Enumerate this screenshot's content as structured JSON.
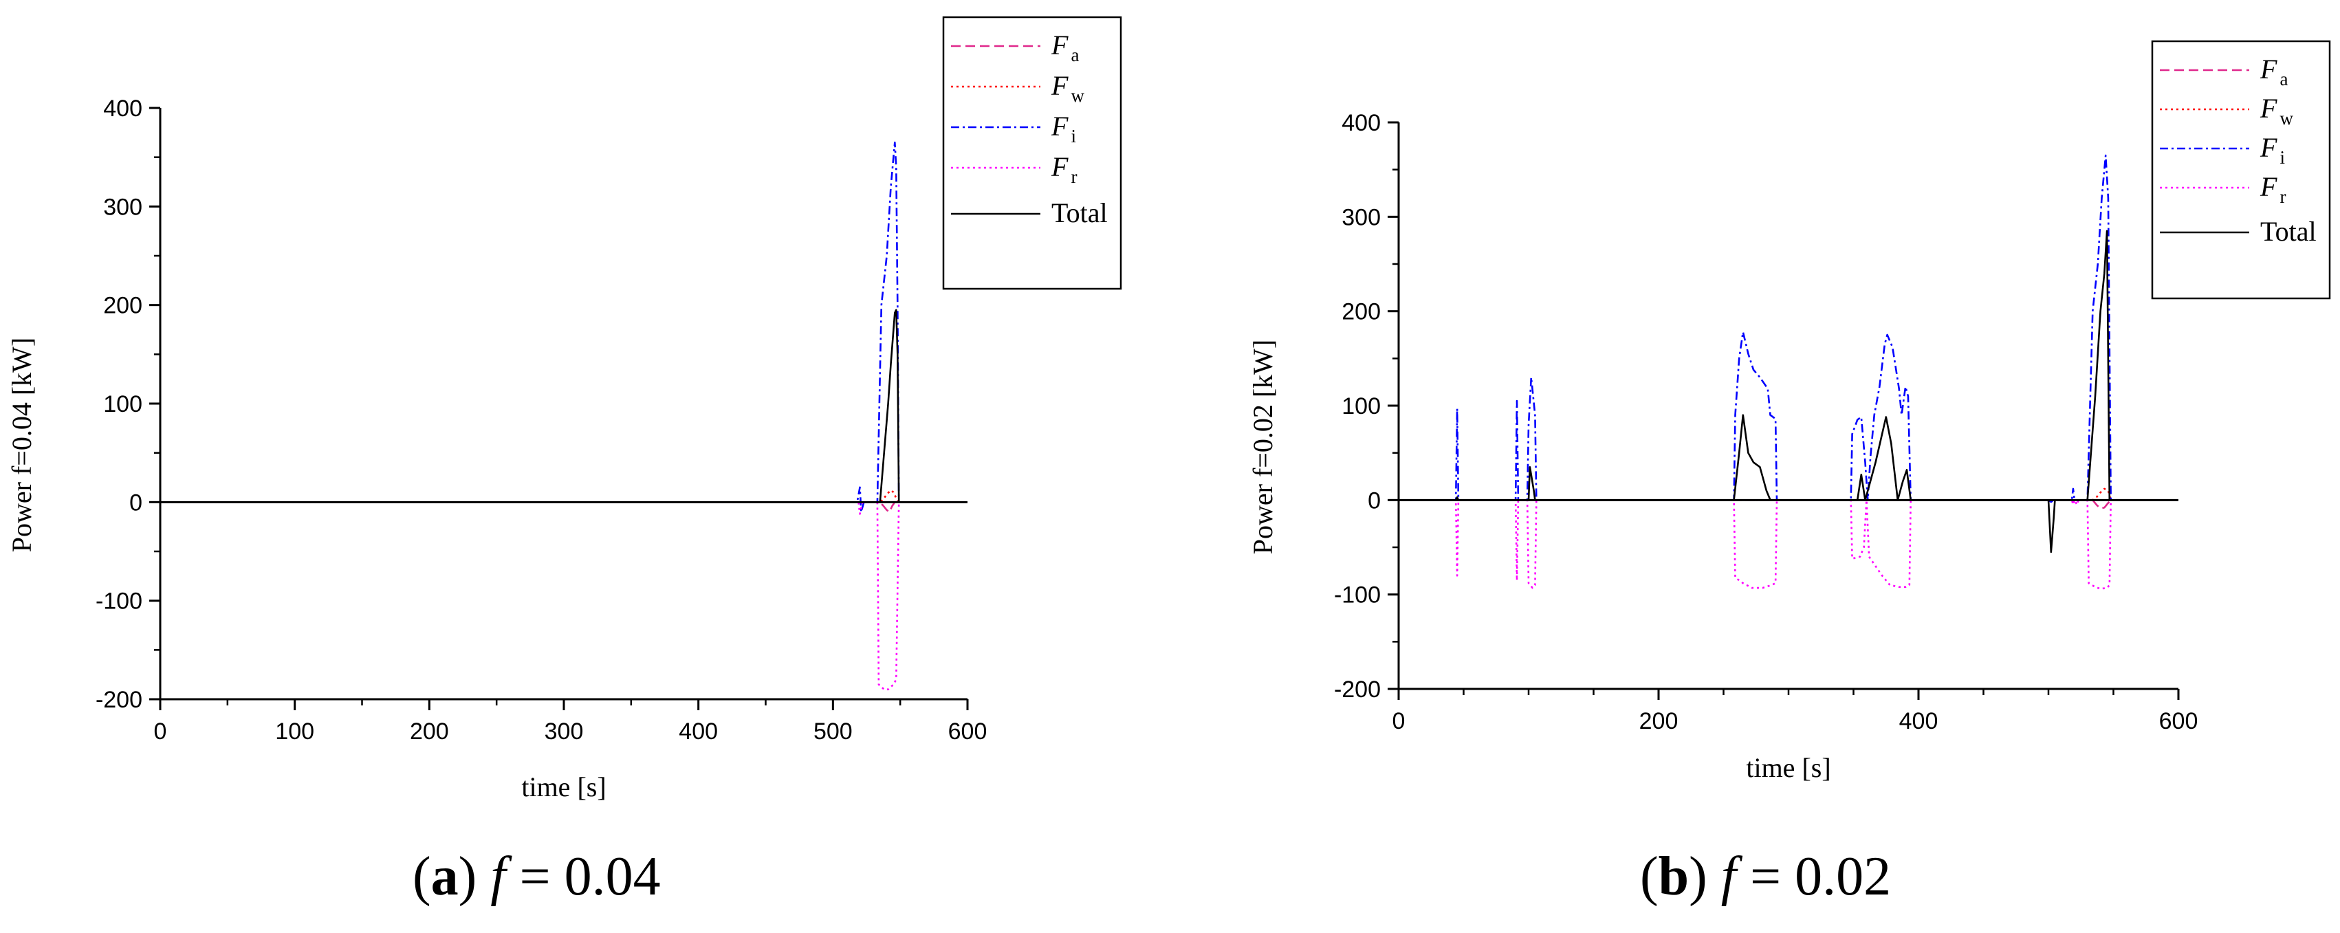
{
  "captions": [
    {
      "letter": "a",
      "var": "f",
      "eq": " = 0.04"
    },
    {
      "letter": "b",
      "var": "f",
      "eq": " = 0.02"
    }
  ],
  "chart_data": [
    {
      "type": "line",
      "panel": "a",
      "xlabel": "time [s]",
      "ylabel": "Power f=0.04 [kW]",
      "xlim": [
        0,
        600
      ],
      "ylim": [
        -200,
        400
      ],
      "xticks": [
        0,
        100,
        200,
        300,
        400,
        500,
        600
      ],
      "yticks": [
        -200,
        -100,
        0,
        100,
        200,
        300,
        400
      ],
      "grid": false,
      "legend_position": "top-right",
      "series": [
        {
          "name": "F",
          "sub": "a",
          "color": "#e0288c",
          "dash": "dashed",
          "points": [
            [
              0,
              0
            ],
            [
              534,
              0
            ],
            [
              537,
              -3
            ],
            [
              540,
              -8
            ],
            [
              542,
              -10
            ],
            [
              544,
              -4
            ],
            [
              546,
              0
            ],
            [
              600,
              0
            ]
          ]
        },
        {
          "name": "F",
          "sub": "w",
          "color": "#ff0000",
          "dash": "dotted",
          "points": [
            [
              0,
              0
            ],
            [
              534,
              0
            ],
            [
              537,
              2
            ],
            [
              540,
              8
            ],
            [
              543,
              12
            ],
            [
              545,
              10
            ],
            [
              547,
              4
            ],
            [
              549,
              0
            ],
            [
              600,
              0
            ]
          ]
        },
        {
          "name": "F",
          "sub": "i",
          "color": "#0000ff",
          "dash": "dashdot",
          "points": [
            [
              0,
              0
            ],
            [
              518,
              0
            ],
            [
              520,
              15
            ],
            [
              521,
              -10
            ],
            [
              523,
              0
            ],
            [
              533,
              0
            ],
            [
              536,
              200
            ],
            [
              540,
              250
            ],
            [
              543,
              320
            ],
            [
              546,
              365
            ],
            [
              547,
              340
            ],
            [
              548,
              200
            ],
            [
              549,
              0
            ],
            [
              600,
              0
            ]
          ]
        },
        {
          "name": "F",
          "sub": "r",
          "color": "#ff00ff",
          "dash": "dotted",
          "points": [
            [
              0,
              0
            ],
            [
              519,
              0
            ],
            [
              520,
              -12
            ],
            [
              522,
              0
            ],
            [
              533,
              0
            ],
            [
              534,
              -185
            ],
            [
              538,
              -190
            ],
            [
              541,
              -190
            ],
            [
              545,
              -185
            ],
            [
              547,
              -180
            ],
            [
              549,
              0
            ],
            [
              600,
              0
            ]
          ]
        },
        {
          "name": "Total",
          "sub": "",
          "color": "#000000",
          "dash": "solid",
          "points": [
            [
              0,
              0
            ],
            [
              535,
              0
            ],
            [
              538,
              50
            ],
            [
              541,
              100
            ],
            [
              543,
              140
            ],
            [
              546,
              192
            ],
            [
              547,
              195
            ],
            [
              548,
              150
            ],
            [
              549,
              0
            ],
            [
              600,
              0
            ]
          ]
        }
      ]
    },
    {
      "type": "line",
      "panel": "b",
      "xlabel": "time [s]",
      "ylabel": "Power f=0.02 [kW]",
      "xlim": [
        0,
        600
      ],
      "ylim": [
        -200,
        400
      ],
      "xticks": [
        0,
        200,
        400,
        600
      ],
      "yticks": [
        -200,
        -100,
        0,
        100,
        200,
        300,
        400
      ],
      "grid": false,
      "legend_position": "top-right",
      "series": [
        {
          "name": "F",
          "sub": "a",
          "color": "#e0288c",
          "dash": "dashed",
          "points": [
            [
              0,
              0
            ],
            [
              534,
              0
            ],
            [
              537,
              -5
            ],
            [
              540,
              -9
            ],
            [
              543,
              -8
            ],
            [
              546,
              -3
            ],
            [
              548,
              0
            ],
            [
              600,
              0
            ]
          ]
        },
        {
          "name": "F",
          "sub": "w",
          "color": "#ff0000",
          "dash": "dotted",
          "points": [
            [
              0,
              0
            ],
            [
              534,
              0
            ],
            [
              537,
              3
            ],
            [
              540,
              8
            ],
            [
              543,
              12
            ],
            [
              546,
              10
            ],
            [
              548,
              0
            ],
            [
              600,
              0
            ]
          ]
        },
        {
          "name": "F",
          "sub": "i",
          "color": "#0000ff",
          "dash": "dashdot",
          "points": [
            [
              0,
              0
            ],
            [
              44,
              0
            ],
            [
              45,
              97
            ],
            [
              46,
              0
            ],
            [
              90,
              0
            ],
            [
              91,
              105
            ],
            [
              92,
              0
            ],
            [
              99,
              0
            ],
            [
              100,
              80
            ],
            [
              102,
              130
            ],
            [
              105,
              90
            ],
            [
              106,
              0
            ],
            [
              258,
              0
            ],
            [
              259,
              90
            ],
            [
              262,
              150
            ],
            [
              265,
              178
            ],
            [
              269,
              155
            ],
            [
              273,
              138
            ],
            [
              278,
              130
            ],
            [
              284,
              118
            ],
            [
              286,
              90
            ],
            [
              290,
              86
            ],
            [
              291,
              0
            ],
            [
              348,
              0
            ],
            [
              349,
              70
            ],
            [
              353,
              85
            ],
            [
              356,
              88
            ],
            [
              359,
              40
            ],
            [
              361,
              0
            ],
            [
              363,
              45
            ],
            [
              366,
              90
            ],
            [
              370,
              120
            ],
            [
              374,
              165
            ],
            [
              376,
              175
            ],
            [
              380,
              162
            ],
            [
              385,
              118
            ],
            [
              387,
              90
            ],
            [
              390,
              120
            ],
            [
              392,
              110
            ],
            [
              394,
              0
            ],
            [
              500,
              0
            ],
            [
              502,
              -2
            ],
            [
              504,
              0
            ],
            [
              518,
              0
            ],
            [
              519,
              12
            ],
            [
              520,
              0
            ],
            [
              530,
              0
            ],
            [
              534,
              200
            ],
            [
              538,
              250
            ],
            [
              541,
              320
            ],
            [
              544,
              365
            ],
            [
              546,
              320
            ],
            [
              548,
              0
            ],
            [
              600,
              0
            ]
          ]
        },
        {
          "name": "F",
          "sub": "r",
          "color": "#ff00ff",
          "dash": "dotted",
          "points": [
            [
              0,
              0
            ],
            [
              44,
              0
            ],
            [
              45,
              -80
            ],
            [
              46,
              0
            ],
            [
              90,
              0
            ],
            [
              91,
              -85
            ],
            [
              92,
              0
            ],
            [
              99,
              0
            ],
            [
              100,
              -88
            ],
            [
              103,
              -93
            ],
            [
              105,
              -90
            ],
            [
              106,
              0
            ],
            [
              258,
              0
            ],
            [
              259,
              -82
            ],
            [
              265,
              -88
            ],
            [
              272,
              -93
            ],
            [
              280,
              -93
            ],
            [
              287,
              -90
            ],
            [
              290,
              -88
            ],
            [
              291,
              0
            ],
            [
              348,
              0
            ],
            [
              349,
              -62
            ],
            [
              355,
              -60
            ],
            [
              358,
              -50
            ],
            [
              360,
              0
            ],
            [
              362,
              -60
            ],
            [
              366,
              -68
            ],
            [
              372,
              -80
            ],
            [
              378,
              -90
            ],
            [
              385,
              -92
            ],
            [
              390,
              -92
            ],
            [
              393,
              -90
            ],
            [
              394,
              0
            ],
            [
              518,
              0
            ],
            [
              519,
              -5
            ],
            [
              520,
              0
            ],
            [
              522,
              -5
            ],
            [
              523,
              0
            ],
            [
              530,
              0
            ],
            [
              531,
              -88
            ],
            [
              536,
              -92
            ],
            [
              540,
              -94
            ],
            [
              545,
              -93
            ],
            [
              547,
              -90
            ],
            [
              548,
              0
            ],
            [
              600,
              0
            ]
          ]
        },
        {
          "name": "Total",
          "sub": "",
          "color": "#000000",
          "dash": "solid",
          "points": [
            [
              0,
              0
            ],
            [
              44,
              0
            ],
            [
              45,
              3
            ],
            [
              46,
              0
            ],
            [
              100,
              0
            ],
            [
              101,
              35
            ],
            [
              104,
              10
            ],
            [
              105,
              0
            ],
            [
              258,
              0
            ],
            [
              262,
              50
            ],
            [
              265,
              90
            ],
            [
              269,
              50
            ],
            [
              273,
              40
            ],
            [
              278,
              35
            ],
            [
              283,
              10
            ],
            [
              286,
              0
            ],
            [
              353,
              0
            ],
            [
              356,
              27
            ],
            [
              359,
              0
            ],
            [
              363,
              20
            ],
            [
              367,
              40
            ],
            [
              372,
              70
            ],
            [
              375,
              88
            ],
            [
              379,
              60
            ],
            [
              384,
              0
            ],
            [
              388,
              20
            ],
            [
              391,
              32
            ],
            [
              394,
              0
            ],
            [
              500,
              0
            ],
            [
              502,
              -55
            ],
            [
              504,
              -20
            ],
            [
              505,
              0
            ],
            [
              530,
              0
            ],
            [
              536,
              110
            ],
            [
              540,
              200
            ],
            [
              543,
              240
            ],
            [
              545,
              285
            ],
            [
              547,
              0
            ],
            [
              600,
              0
            ]
          ]
        }
      ]
    }
  ]
}
